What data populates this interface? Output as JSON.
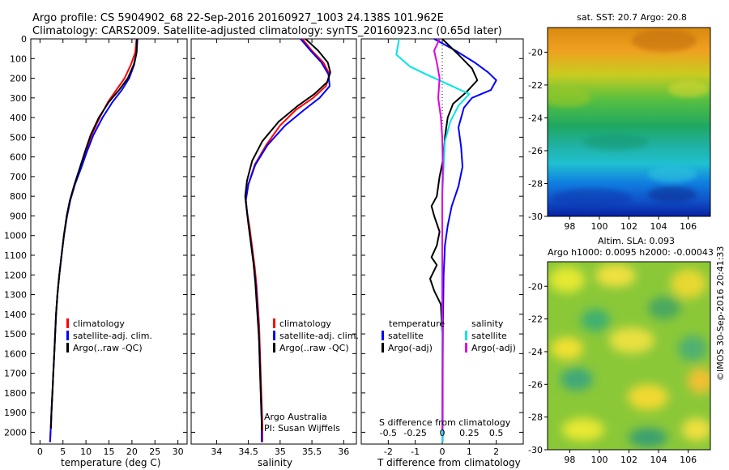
{
  "header": {
    "line1": "Argo profile: CS 5904902_68 22-Sep-2016 20160927_1003 24.138S 101.962E",
    "line2": "Climatology: CARS2009. Satellite-adjusted climatology: synTS_20160923.nc (0.65d later)"
  },
  "colors": {
    "climatology": "#ff0000",
    "satellite": "#0000ff",
    "argo": "#000000",
    "satellite_salinity": "#00e5e5",
    "argo_salinity": "#e000e0"
  },
  "depth_axis": {
    "ticks": [
      0,
      100,
      200,
      300,
      400,
      500,
      600,
      700,
      800,
      900,
      1000,
      1100,
      1200,
      1300,
      1400,
      1500,
      1600,
      1700,
      1800,
      1900,
      2000
    ],
    "range": [
      0,
      2060
    ],
    "inverted": true
  },
  "chart_data": [
    {
      "type": "line",
      "id": "temperature",
      "xlabel": "temperature (deg C)",
      "xlim": [
        -2,
        32
      ],
      "xticks": [
        0,
        5,
        10,
        15,
        20,
        25,
        30
      ],
      "ylim": [
        0,
        2060
      ],
      "legend": {
        "placement": "bottom-left",
        "entries": [
          "climatology",
          "satellite-adj. clim.",
          "Argo(..raw -QC)"
        ]
      },
      "series": [
        {
          "name": "climatology",
          "color": "#ff0000",
          "points": [
            [
              21.0,
              0
            ],
            [
              20.7,
              70
            ],
            [
              19.8,
              130
            ],
            [
              18.4,
              200
            ],
            [
              16.6,
              260
            ],
            [
              14.8,
              320
            ],
            [
              13.0,
              400
            ],
            [
              11.2,
              490
            ],
            [
              9.9,
              580
            ],
            [
              8.8,
              660
            ],
            [
              7.6,
              740
            ],
            [
              6.6,
              820
            ],
            [
              5.9,
              900
            ],
            [
              5.2,
              1000
            ],
            [
              4.7,
              1100
            ],
            [
              4.2,
              1200
            ],
            [
              3.8,
              1300
            ],
            [
              3.5,
              1400
            ],
            [
              3.3,
              1500
            ],
            [
              3.1,
              1600
            ],
            [
              2.9,
              1700
            ],
            [
              2.7,
              1800
            ],
            [
              2.5,
              1900
            ],
            [
              2.3,
              2000
            ],
            [
              2.2,
              2050
            ]
          ]
        },
        {
          "name": "satellite-adj. clim.",
          "color": "#0000ff",
          "points": [
            [
              21.2,
              0
            ],
            [
              21.0,
              70
            ],
            [
              20.5,
              130
            ],
            [
              19.4,
              200
            ],
            [
              17.8,
              260
            ],
            [
              15.8,
              320
            ],
            [
              13.6,
              400
            ],
            [
              11.6,
              490
            ],
            [
              10.1,
              580
            ],
            [
              8.9,
              660
            ],
            [
              7.6,
              740
            ],
            [
              6.6,
              820
            ],
            [
              5.9,
              900
            ],
            [
              5.2,
              1000
            ],
            [
              4.7,
              1100
            ],
            [
              4.2,
              1200
            ],
            [
              3.8,
              1300
            ],
            [
              3.5,
              1400
            ],
            [
              3.3,
              1500
            ],
            [
              3.1,
              1600
            ],
            [
              2.9,
              1700
            ],
            [
              2.7,
              1800
            ],
            [
              2.5,
              1900
            ],
            [
              2.3,
              2000
            ],
            [
              2.2,
              2050
            ]
          ]
        },
        {
          "name": "Argo(..raw -QC)",
          "color": "#000000",
          "points": [
            [
              21.1,
              0
            ],
            [
              21.0,
              70
            ],
            [
              20.4,
              130
            ],
            [
              19.1,
              200
            ],
            [
              17.2,
              260
            ],
            [
              15.0,
              320
            ],
            [
              12.8,
              400
            ],
            [
              11.0,
              490
            ],
            [
              9.7,
              580
            ],
            [
              8.6,
              660
            ],
            [
              7.5,
              740
            ],
            [
              6.5,
              820
            ],
            [
              5.8,
              900
            ],
            [
              5.2,
              1000
            ],
            [
              4.7,
              1100
            ],
            [
              4.2,
              1200
            ],
            [
              3.8,
              1300
            ],
            [
              3.5,
              1400
            ],
            [
              3.3,
              1500
            ],
            [
              3.1,
              1600
            ],
            [
              2.9,
              1700
            ],
            [
              2.7,
              1800
            ],
            [
              2.5,
              1900
            ],
            [
              2.4,
              1980
            ]
          ]
        }
      ]
    },
    {
      "type": "line",
      "id": "salinity",
      "xlabel": "salinity",
      "xlim": [
        33.6,
        36.2
      ],
      "xticks": [
        34,
        34.5,
        35,
        35.5,
        36
      ],
      "ylim": [
        0,
        2060
      ],
      "legend": {
        "placement": "bottom-right",
        "entries": [
          "climatology",
          "satellite-adj. clim.",
          "Argo(..raw -QC)"
        ]
      },
      "annotation": {
        "line1": "Argo Australia",
        "line2": "PI: Susan Wijffels"
      },
      "series": [
        {
          "name": "climatology",
          "color": "#ff0000",
          "points": [
            [
              35.35,
              0
            ],
            [
              35.5,
              60
            ],
            [
              35.68,
              120
            ],
            [
              35.78,
              180
            ],
            [
              35.72,
              240
            ],
            [
              35.52,
              300
            ],
            [
              35.25,
              360
            ],
            [
              35.0,
              440
            ],
            [
              34.78,
              540
            ],
            [
              34.6,
              640
            ],
            [
              34.5,
              740
            ],
            [
              34.46,
              820
            ],
            [
              34.48,
              880
            ],
            [
              34.52,
              960
            ],
            [
              34.56,
              1060
            ],
            [
              34.6,
              1160
            ],
            [
              34.63,
              1260
            ],
            [
              34.65,
              1360
            ],
            [
              34.67,
              1460
            ],
            [
              34.68,
              1560
            ],
            [
              34.69,
              1660
            ],
            [
              34.7,
              1760
            ],
            [
              34.71,
              1860
            ],
            [
              34.72,
              1960
            ],
            [
              34.72,
              2050
            ]
          ]
        },
        {
          "name": "satellite-adj. clim.",
          "color": "#0000ff",
          "points": [
            [
              35.32,
              0
            ],
            [
              35.48,
              60
            ],
            [
              35.65,
              120
            ],
            [
              35.76,
              180
            ],
            [
              35.78,
              240
            ],
            [
              35.62,
              300
            ],
            [
              35.38,
              360
            ],
            [
              35.08,
              440
            ],
            [
              34.8,
              540
            ],
            [
              34.61,
              640
            ],
            [
              34.5,
              740
            ],
            [
              34.46,
              820
            ],
            [
              34.48,
              880
            ],
            [
              34.51,
              960
            ],
            [
              34.55,
              1060
            ],
            [
              34.59,
              1160
            ],
            [
              34.62,
              1260
            ],
            [
              34.64,
              1360
            ],
            [
              34.66,
              1460
            ],
            [
              34.67,
              1560
            ],
            [
              34.68,
              1660
            ],
            [
              34.69,
              1760
            ],
            [
              34.7,
              1860
            ],
            [
              34.71,
              1960
            ],
            [
              34.71,
              2050
            ]
          ]
        },
        {
          "name": "Argo(..raw -QC)",
          "color": "#000000",
          "points": [
            [
              35.4,
              0
            ],
            [
              35.6,
              60
            ],
            [
              35.75,
              120
            ],
            [
              35.79,
              170
            ],
            [
              35.74,
              220
            ],
            [
              35.54,
              280
            ],
            [
              35.28,
              340
            ],
            [
              34.98,
              420
            ],
            [
              34.72,
              520
            ],
            [
              34.56,
              620
            ],
            [
              34.48,
              720
            ],
            [
              34.45,
              800
            ],
            [
              34.47,
              860
            ],
            [
              34.5,
              940
            ],
            [
              34.54,
              1040
            ],
            [
              34.58,
              1140
            ],
            [
              34.61,
              1240
            ],
            [
              34.63,
              1340
            ],
            [
              34.65,
              1440
            ],
            [
              34.67,
              1540
            ],
            [
              34.68,
              1640
            ],
            [
              34.69,
              1740
            ],
            [
              34.7,
              1840
            ],
            [
              34.71,
              1940
            ],
            [
              34.71,
              1990
            ]
          ]
        }
      ]
    },
    {
      "type": "line",
      "id": "difference",
      "xlabel": "T difference from climatology",
      "xlabel_secondary": "S difference from climatology",
      "xlim": [
        -3,
        3
      ],
      "xticks": [
        -2,
        -1,
        0,
        1,
        2
      ],
      "xticks_secondary": [
        "-0.5",
        "-0.25",
        "0",
        "0.25",
        "0.5"
      ],
      "ylim": [
        0,
        2060
      ],
      "legend": {
        "placement": "bottom",
        "temperature_title": "temperature",
        "salinity_title": "salinity",
        "entries": [
          "satellite",
          "Argo(-adj)",
          "satellite",
          "Argo(-adj)"
        ]
      },
      "series": [
        {
          "name": "temperature satellite",
          "color": "#0000ff",
          "points": [
            [
              -0.3,
              0
            ],
            [
              0.5,
              60
            ],
            [
              1.2,
              120
            ],
            [
              1.7,
              170
            ],
            [
              2.0,
              210
            ],
            [
              1.8,
              260
            ],
            [
              1.1,
              300
            ],
            [
              0.8,
              350
            ],
            [
              0.6,
              450
            ],
            [
              0.7,
              550
            ],
            [
              0.75,
              650
            ],
            [
              0.6,
              750
            ],
            [
              0.35,
              850
            ],
            [
              0.2,
              950
            ],
            [
              0.1,
              1050
            ],
            [
              0.05,
              1200
            ],
            [
              0.02,
              1500
            ],
            [
              0.01,
              2050
            ]
          ]
        },
        {
          "name": "temperature Argo(-adj)",
          "color": "#000000",
          "points": [
            [
              0.0,
              0
            ],
            [
              0.6,
              80
            ],
            [
              1.1,
              150
            ],
            [
              1.3,
              210
            ],
            [
              0.9,
              270
            ],
            [
              0.4,
              330
            ],
            [
              0.2,
              400
            ],
            [
              0.1,
              500
            ],
            [
              0.05,
              600
            ],
            [
              -0.1,
              700
            ],
            [
              -0.2,
              800
            ],
            [
              -0.4,
              850
            ],
            [
              -0.3,
              900
            ],
            [
              -0.1,
              980
            ],
            [
              -0.2,
              1050
            ],
            [
              -0.4,
              1110
            ],
            [
              -0.2,
              1150
            ],
            [
              -0.45,
              1220
            ],
            [
              -0.3,
              1280
            ],
            [
              -0.05,
              1350
            ],
            [
              0.0,
              1500
            ],
            [
              0.0,
              1990
            ]
          ]
        },
        {
          "name": "salinity satellite",
          "color": "#00e5e5",
          "points": [
            [
              -1.6,
              0
            ],
            [
              -1.7,
              80
            ],
            [
              -1.2,
              140
            ],
            [
              -0.6,
              180
            ],
            [
              0.2,
              230
            ],
            [
              1.0,
              280
            ],
            [
              0.6,
              340
            ],
            [
              0.3,
              420
            ],
            [
              0.1,
              520
            ],
            [
              0.05,
              650
            ],
            [
              0.0,
              800
            ],
            [
              0.0,
              1000
            ],
            [
              0.0,
              1300
            ],
            [
              0.0,
              2050
            ]
          ]
        },
        {
          "name": "salinity Argo(-adj)",
          "color": "#e000e0",
          "points": [
            [
              -0.1,
              0
            ],
            [
              -0.3,
              60
            ],
            [
              -0.2,
              120
            ],
            [
              -0.1,
              200
            ],
            [
              -0.15,
              300
            ],
            [
              -0.05,
              400
            ],
            [
              0.0,
              500
            ],
            [
              0.02,
              650
            ],
            [
              0.0,
              800
            ],
            [
              0.0,
              1000
            ],
            [
              0.0,
              1300
            ],
            [
              0.02,
              1500
            ],
            [
              0.0,
              1990
            ]
          ]
        }
      ]
    },
    {
      "type": "heatmap",
      "id": "sst-map",
      "title": "sat. SST: 20.7 Argo: 20.8",
      "xlim": [
        96.5,
        107.5
      ],
      "ylim": [
        -30,
        -18.5
      ],
      "xticks": [
        98,
        100,
        102,
        104,
        106
      ],
      "yticks": [
        -20,
        -22,
        -24,
        -26,
        -28,
        -30
      ]
    },
    {
      "type": "heatmap",
      "id": "sla-map",
      "title": "Altim. SLA: 0.093",
      "subtitle": "Argo h1000: 0.0095 h2000: -0.00043",
      "xlim": [
        96.5,
        107.5
      ],
      "ylim": [
        -30,
        -18.5
      ],
      "xticks": [
        98,
        100,
        102,
        104,
        106
      ],
      "yticks": [
        -20,
        -22,
        -24,
        -26,
        -28,
        -30
      ]
    }
  ],
  "side_note": "©IMOS 30-Sep-2016 20:41:33"
}
